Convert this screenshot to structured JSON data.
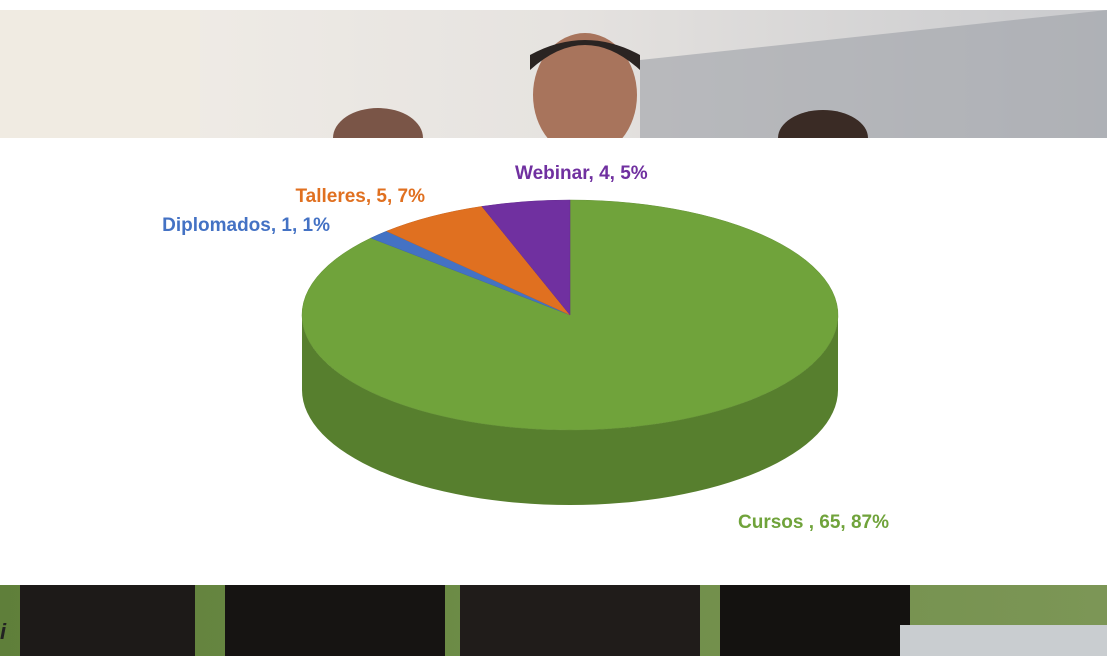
{
  "chart_data": {
    "type": "pie",
    "values": [
      65,
      1,
      5,
      4
    ],
    "value_labels": [
      "Cursos , 65, 87%",
      "Diplomados, 1, 1%",
      "Talleres, 5, 7%",
      "Webinar, 4, 5%"
    ],
    "colors": [
      "#70a33b",
      "#4472c4",
      "#e07020",
      "#7030a0"
    ]
  },
  "page_text": "i"
}
